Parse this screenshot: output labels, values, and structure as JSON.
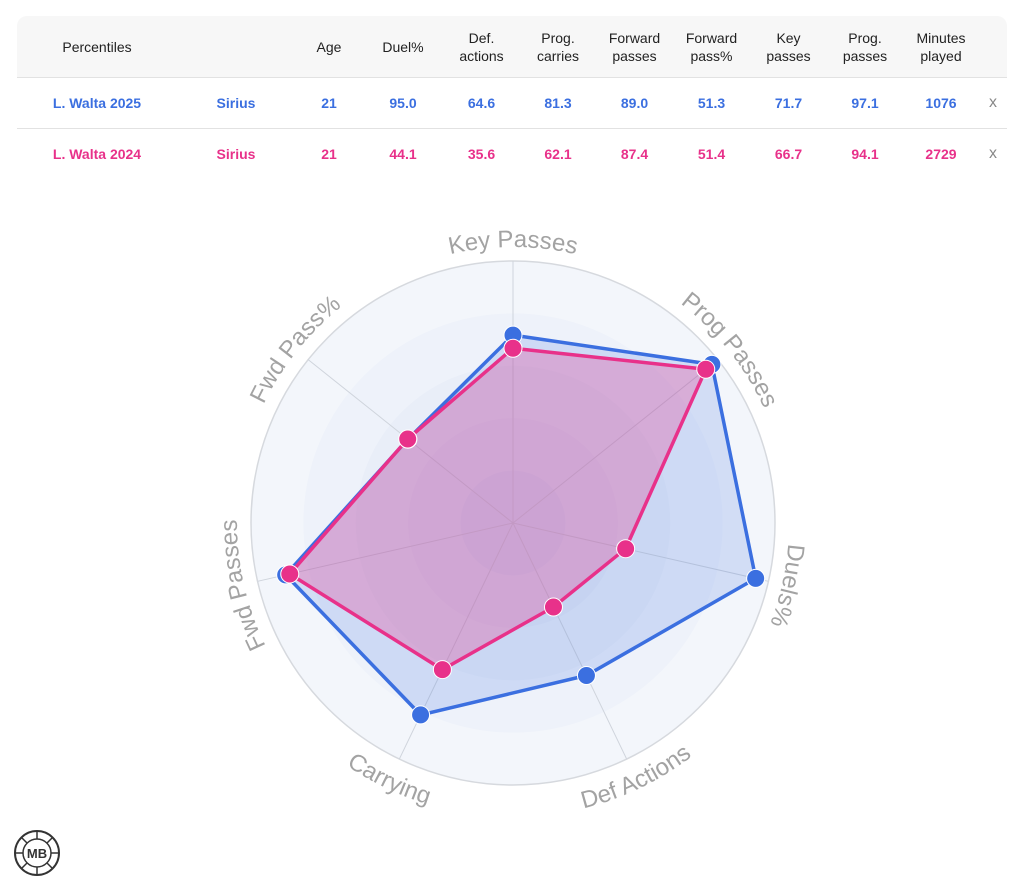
{
  "table": {
    "headers": {
      "percentiles": "Percentiles",
      "age": "Age",
      "duel": "Duel%",
      "def_1": "Def.",
      "def_2": "actions",
      "pc_1": "Prog.",
      "pc_2": "carries",
      "fp_1": "Forward",
      "fp_2": "passes",
      "fpp_1": "Forward",
      "fpp_2": "pass%",
      "kp_1": "Key",
      "kp_2": "passes",
      "pp_1": "Prog.",
      "pp_2": "passes",
      "min_1": "Minutes",
      "min_2": "played"
    },
    "rows": [
      {
        "player": "L. Walta 2025",
        "team": "Sirius",
        "age": "21",
        "duel": "95.0",
        "def_actions": "64.6",
        "prog_carries": "81.3",
        "fwd_passes": "89.0",
        "fwd_pass_pct": "51.3",
        "key_passes": "71.7",
        "prog_passes": "97.1",
        "minutes": "1076",
        "remove": "x",
        "color": "#3b6fe0"
      },
      {
        "player": "L. Walta 2024",
        "team": "Sirius",
        "age": "21",
        "duel": "44.1",
        "def_actions": "35.6",
        "prog_carries": "62.1",
        "fwd_passes": "87.4",
        "fwd_pass_pct": "51.4",
        "key_passes": "66.7",
        "prog_passes": "94.1",
        "minutes": "2729",
        "remove": "x",
        "color": "#e8318a"
      }
    ]
  },
  "chart_data": {
    "type": "radar",
    "axes": [
      "Key Passes",
      "Prog Passes",
      "Duels%",
      "Def Actions",
      "Carrying",
      "Fwd Passes",
      "Fwd Pass%"
    ],
    "range": [
      0,
      100
    ],
    "series": [
      {
        "name": "L. Walta 2025",
        "color": "#3b6fe0",
        "values": [
          71.7,
          97.1,
          95.0,
          64.6,
          81.3,
          89.0,
          51.3
        ]
      },
      {
        "name": "L. Walta 2024",
        "color": "#e8318a",
        "values": [
          66.7,
          94.1,
          44.1,
          35.6,
          62.1,
          87.4,
          51.4
        ]
      }
    ]
  },
  "logo": {
    "text": "MB"
  }
}
